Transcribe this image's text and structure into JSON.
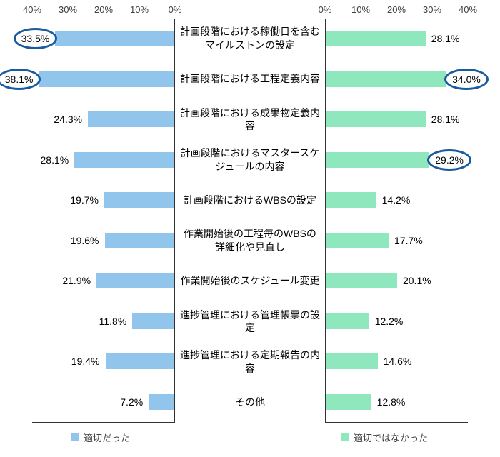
{
  "chart_data": {
    "type": "bar",
    "orientation": "horizontal",
    "layout": "paired-diverging",
    "title": "",
    "grid": false,
    "legend_position": "bottom",
    "axis": {
      "min": 0,
      "max": 40,
      "left_ticks": [
        "40%",
        "30%",
        "20%",
        "10%",
        "0%"
      ],
      "right_ticks": [
        "0%",
        "10%",
        "20%",
        "30%",
        "40%"
      ]
    },
    "categories": [
      "計画段階における稼働日を含むマイルストンの設定",
      "計画段階における工程定義内容",
      "計画段階における成果物定義内容",
      "計画段階におけるマスタースケジュールの内容",
      "計画段階におけるWBSの設定",
      "作業開始後の工程毎のWBSの詳細化や見直し",
      "作業開始後のスケジュール変更",
      "進捗管理における管理帳票の設定",
      "進捗管理における定期報告の内容",
      "その他"
    ],
    "series": [
      {
        "name": "適切だった",
        "side": "left",
        "color": "#92c5ec",
        "values": [
          33.5,
          38.1,
          24.3,
          28.1,
          19.7,
          19.6,
          21.9,
          11.8,
          19.4,
          7.2
        ],
        "labels": [
          "33.5%",
          "38.1%",
          "24.3%",
          "28.1%",
          "19.7%",
          "19.6%",
          "21.9%",
          "11.8%",
          "19.4%",
          "7.2%"
        ],
        "circled_indices": [
          0,
          1
        ]
      },
      {
        "name": "適切ではなかった",
        "side": "right",
        "color": "#8fe8bd",
        "values": [
          28.1,
          34.0,
          28.1,
          29.2,
          14.2,
          17.7,
          20.1,
          12.2,
          14.6,
          12.8
        ],
        "labels": [
          "28.1%",
          "34.0%",
          "28.1%",
          "29.2%",
          "14.2%",
          "17.7%",
          "20.1%",
          "12.2%",
          "14.6%",
          "12.8%"
        ],
        "circled_indices": [
          1,
          3
        ]
      }
    ],
    "highlight_ellipse_color": "#1a5b9e"
  }
}
